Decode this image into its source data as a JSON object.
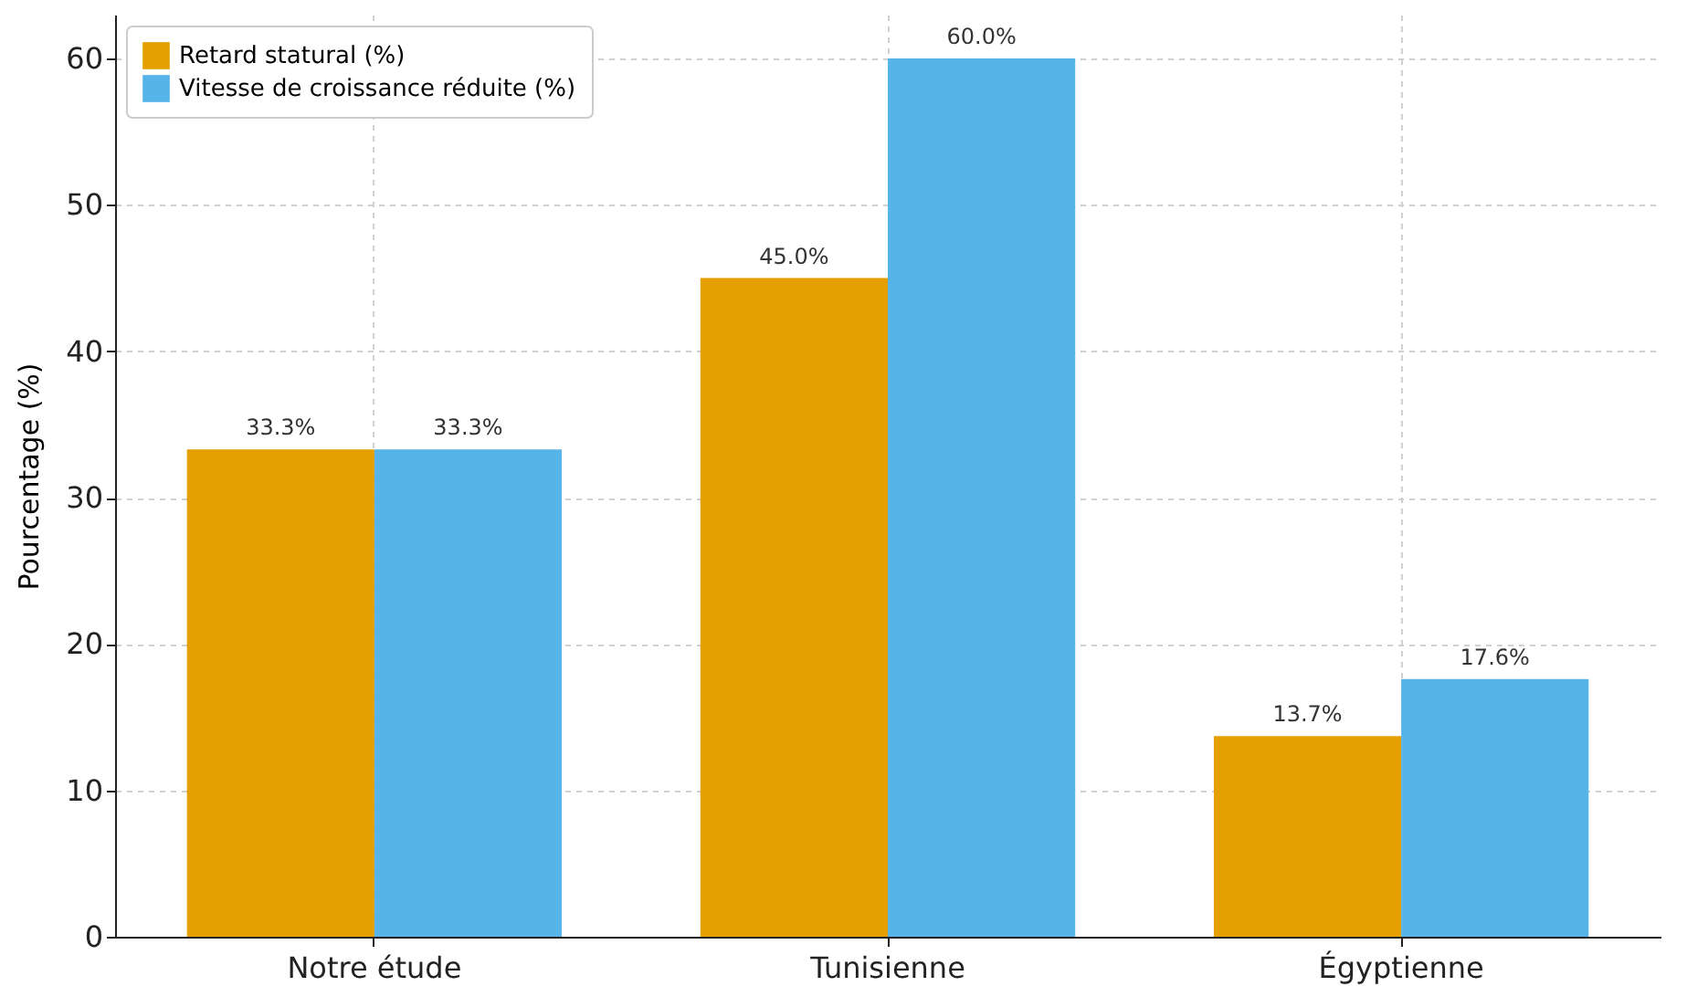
{
  "chart_data": {
    "type": "bar",
    "ylabel": "Pourcentage (%)",
    "categories": [
      "Notre étude",
      "Tunisienne",
      "Égyptienne"
    ],
    "series": [
      {
        "name": "Retard statural (%)",
        "color": "#e69f00",
        "values": [
          33.3,
          45.0,
          13.7
        ],
        "value_labels": [
          "33.3%",
          "45.0%",
          "13.7%"
        ]
      },
      {
        "name": "Vitesse de croissance réduite (%)",
        "color": "#56b4e9",
        "values": [
          33.3,
          60.0,
          17.6
        ],
        "value_labels": [
          "33.3%",
          "60.0%",
          "17.6%"
        ]
      }
    ],
    "ylim": [
      0,
      63
    ],
    "yticks": [
      0,
      10,
      20,
      30,
      40,
      50,
      60
    ],
    "grid": true,
    "legend": "top left"
  }
}
